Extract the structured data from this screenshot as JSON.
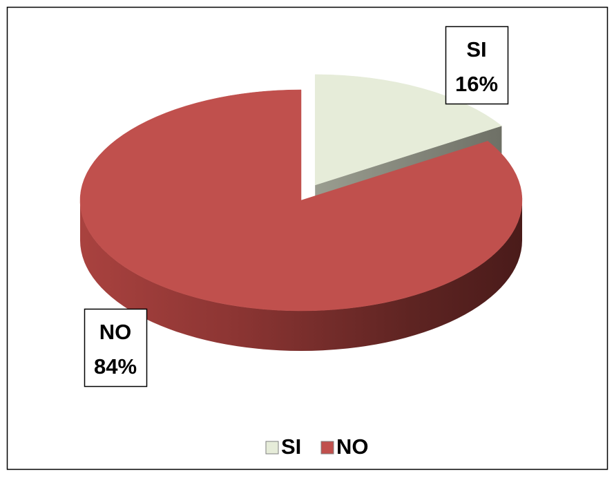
{
  "chart_data": {
    "type": "pie",
    "categories": [
      "SI",
      "NO"
    ],
    "values": [
      16,
      84
    ],
    "value_labels": [
      "16%",
      "84%"
    ],
    "colors": [
      "#e6ecd9",
      "#c0504d"
    ],
    "legend": "bottom"
  }
}
